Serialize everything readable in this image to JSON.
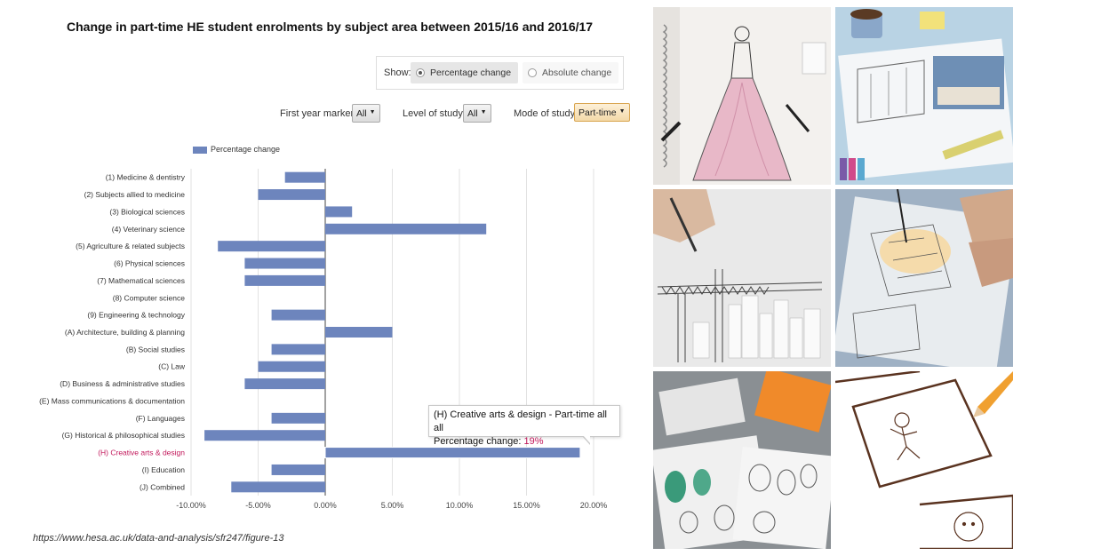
{
  "title": "Change in part-time HE student enrolments by subject area between 2015/16 and 2016/17",
  "show": {
    "label": "Show:",
    "options": [
      "Percentage change",
      "Absolute change"
    ],
    "selected": "Percentage change"
  },
  "filters": {
    "first_year_marker": {
      "label": "First year marker",
      "value": "All"
    },
    "level_of_study": {
      "label": "Level of study",
      "value": "All"
    },
    "mode_of_study": {
      "label": "Mode of study",
      "value": "Part-time"
    }
  },
  "legend": {
    "label": "Percentage change",
    "color": "#6d85bd"
  },
  "chart_data": {
    "type": "bar",
    "orientation": "horizontal",
    "categories": [
      "(1) Medicine & dentistry",
      "(2) Subjects allied to medicine",
      "(3) Biological sciences",
      "(4) Veterinary science",
      "(5) Agriculture & related subjects",
      "(6) Physical sciences",
      "(7) Mathematical sciences",
      "(8) Computer science",
      "(9) Engineering & technology",
      "(A) Architecture, building & planning",
      "(B) Social studies",
      "(C) Law",
      "(D) Business & administrative studies",
      "(E) Mass communications & documentation",
      "(F) Languages",
      "(G) Historical & philosophical studies",
      "(H) Creative arts & design",
      "(I) Education",
      "(J) Combined"
    ],
    "series": [
      {
        "name": "Percentage change",
        "values": [
          -3,
          -5,
          2,
          12,
          -8,
          -6,
          -6,
          0,
          -4,
          5,
          -4,
          -5,
          -6,
          0,
          -4,
          -9,
          19,
          -4,
          -7
        ]
      }
    ],
    "xlim": [
      -10,
      20
    ],
    "xticks": [
      "-10.00%",
      "-5.00%",
      "0.00%",
      "5.00%",
      "10.00%",
      "15.00%",
      "20.00%"
    ],
    "highlight_category": "(H) Creative arts & design",
    "highlight_color": "#c2185b",
    "bar_color": "#6d85bd",
    "grid": "vertical"
  },
  "tooltip": {
    "line1": "(H) Creative arts & design - Part-time all all",
    "label": "Percentage change:",
    "value": "19%"
  },
  "source": "https://www.hesa.ac.uk/data-and-analysis/sfr247/figure-13"
}
